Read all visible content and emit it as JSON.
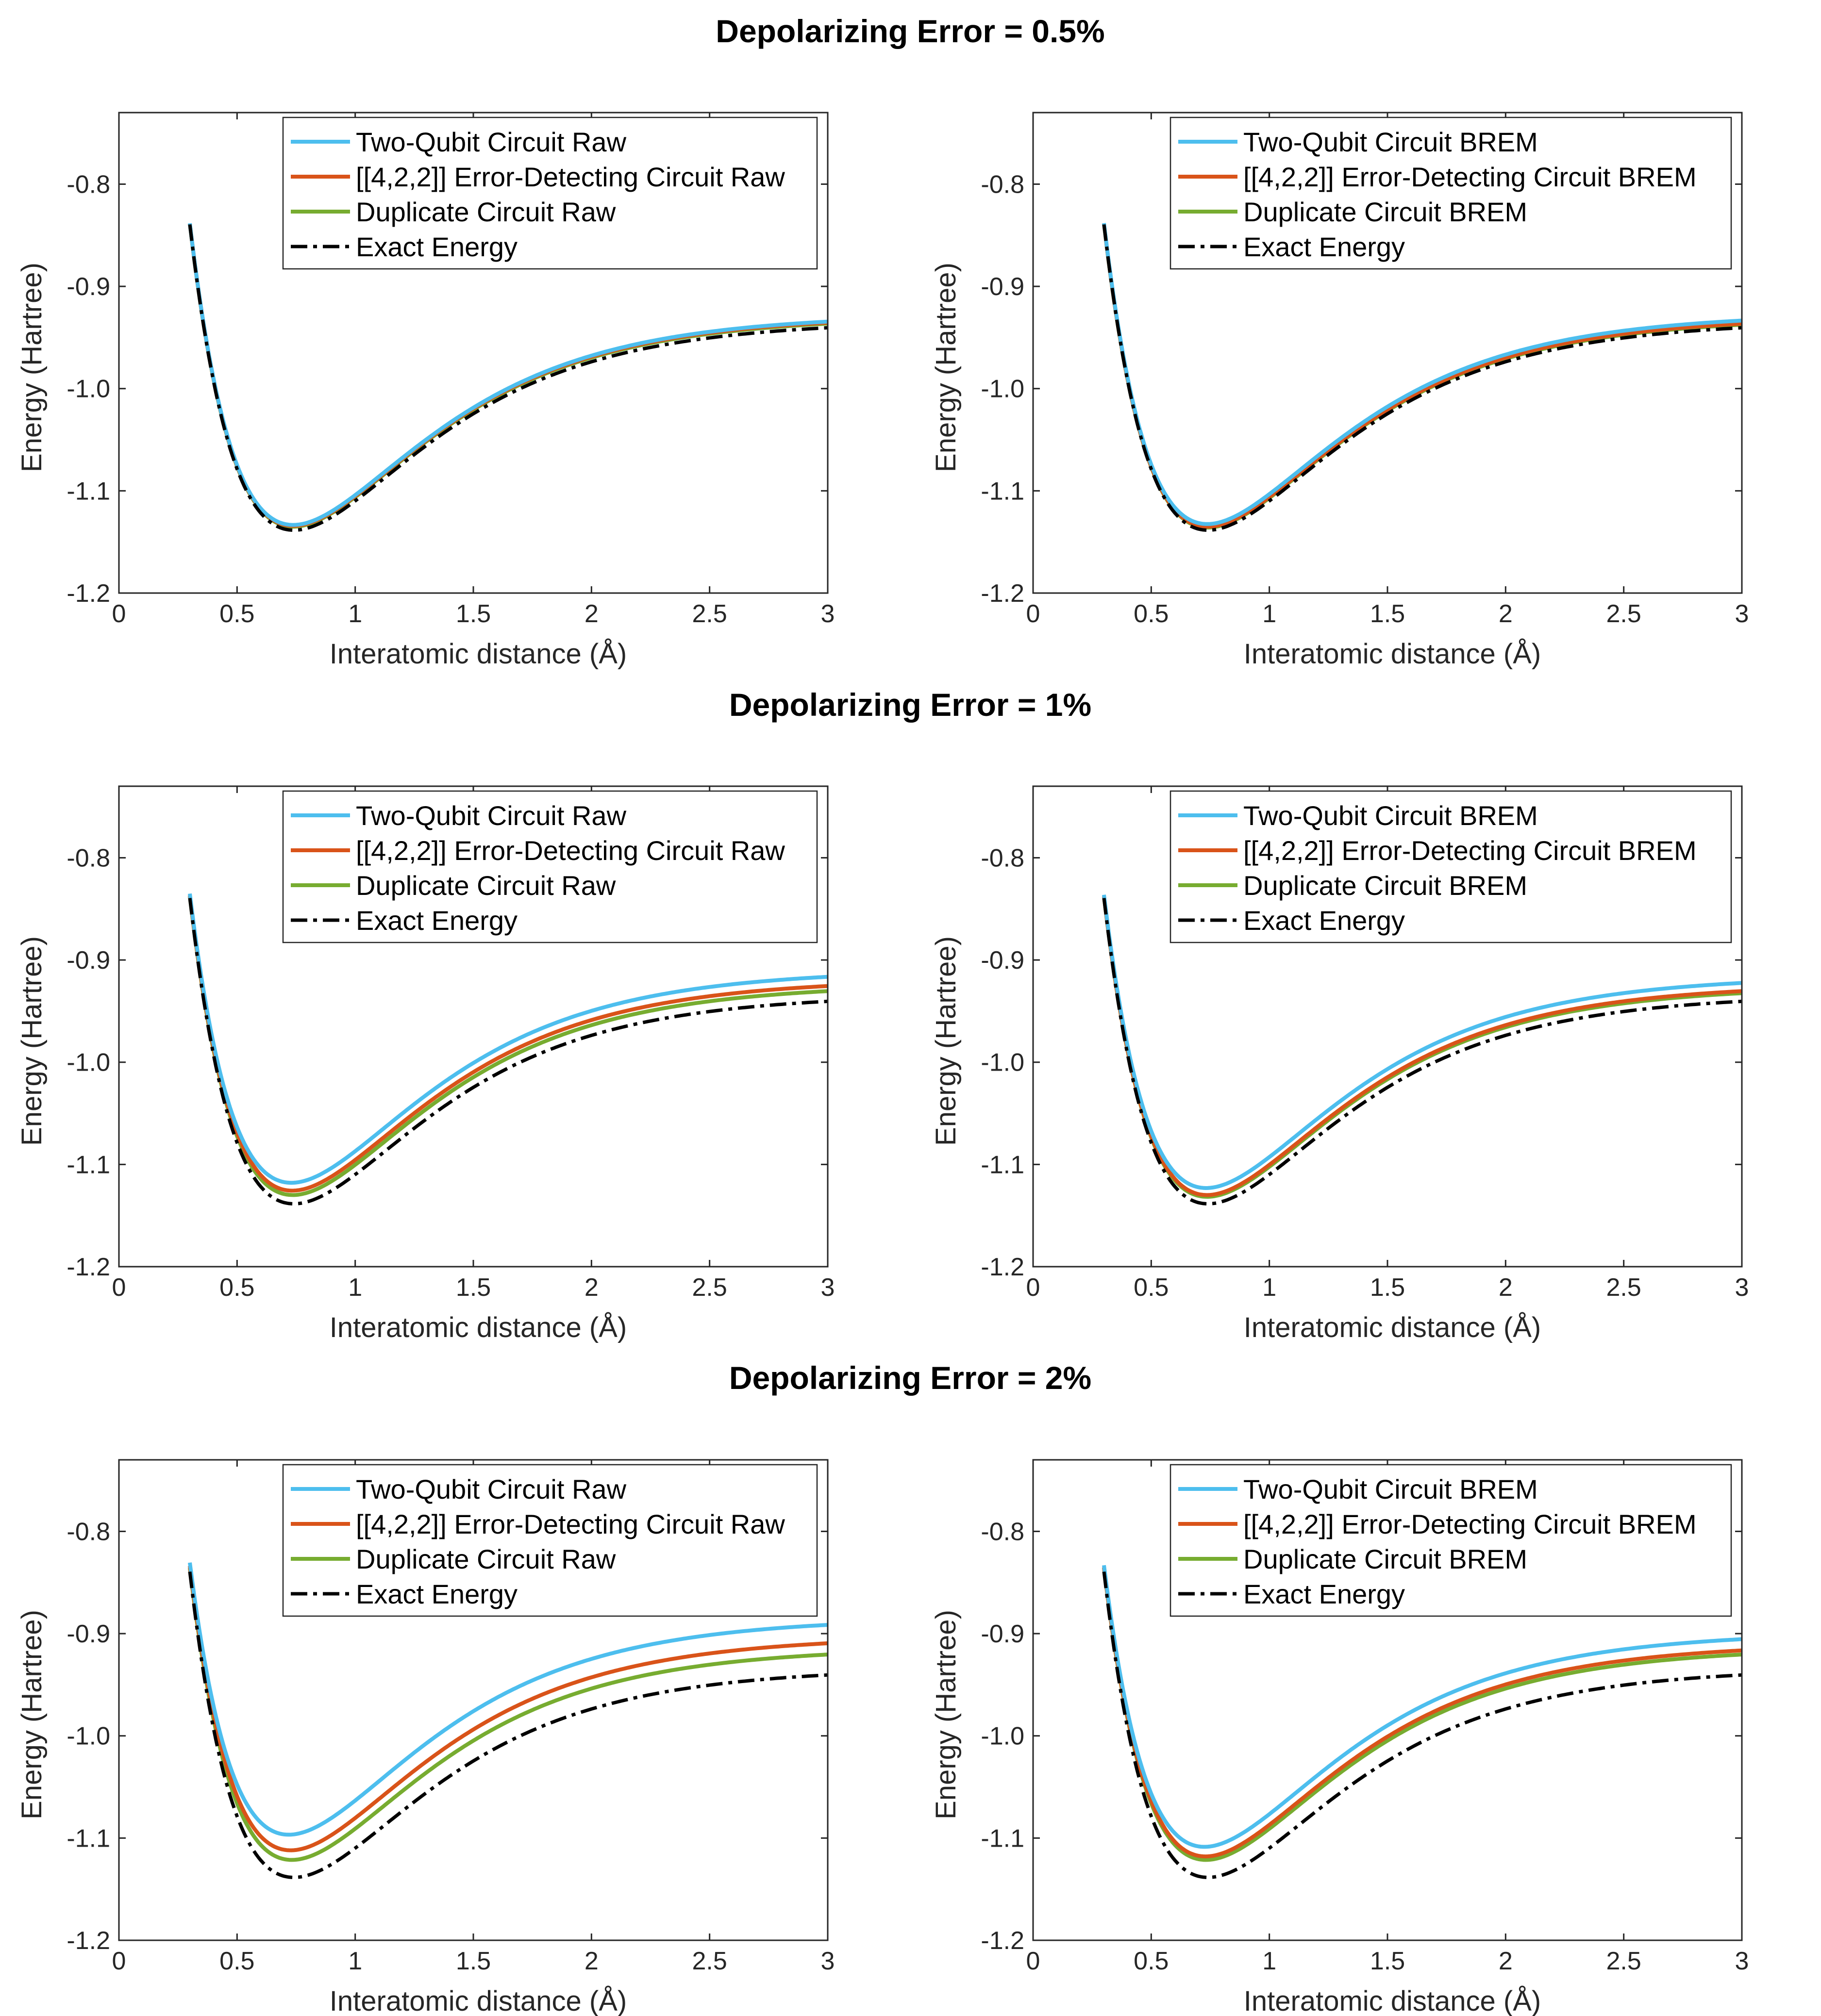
{
  "figure": {
    "section_titles": [
      "Depolarizing Error = 0.5%",
      "Depolarizing Error = 1%",
      "Depolarizing Error = 2%"
    ]
  },
  "colors": {
    "two_qubit": "#4DBEEE",
    "error_detecting": "#D95319",
    "duplicate": "#77AC30",
    "exact": "#000000"
  },
  "chart_data": [
    {
      "type": "line",
      "row": 0,
      "col": 0,
      "error_rate": "0.5%",
      "xlabel": "Interatomic distance (Å)",
      "ylabel": "Energy (Hartree)",
      "xlim": [
        0,
        3
      ],
      "ylim": [
        -1.2,
        -0.73
      ],
      "xticks": [
        0,
        0.5,
        1,
        1.5,
        2,
        2.5,
        3
      ],
      "xtick_labels": [
        "0",
        "0.5",
        "1",
        "1.5",
        "2",
        "2.5",
        "3"
      ],
      "yticks": [
        -1.2,
        -1.1,
        -1.0,
        -0.9,
        -0.8
      ],
      "ytick_labels": [
        "-1.2",
        "-1.1",
        "-1.0",
        "-0.9",
        "-0.8"
      ],
      "legend_location": "top-right",
      "series": [
        {
          "name": "Two-Qubit Circuit Raw",
          "key": "two_qubit",
          "offset": 0.006
        },
        {
          "name": "[[4,2,2]] Error-Detecting Circuit Raw",
          "key": "error_detecting",
          "offset": 0.005
        },
        {
          "name": "Duplicate Circuit Raw",
          "key": "duplicate",
          "offset": 0.004
        },
        {
          "name": "Exact Energy",
          "key": "exact",
          "offset": 0,
          "dash": "dashdot"
        }
      ]
    },
    {
      "type": "line",
      "row": 0,
      "col": 1,
      "error_rate": "0.5%",
      "xlabel": "Interatomic distance (Å)",
      "ylabel": "Energy (Hartree)",
      "xlim": [
        0,
        3
      ],
      "ylim": [
        -1.2,
        -0.73
      ],
      "xticks": [
        0,
        0.5,
        1,
        1.5,
        2,
        2.5,
        3
      ],
      "xtick_labels": [
        "0",
        "0.5",
        "1",
        "1.5",
        "2",
        "2.5",
        "3"
      ],
      "yticks": [
        -1.2,
        -1.1,
        -1.0,
        -0.9,
        -0.8
      ],
      "ytick_labels": [
        "-1.2",
        "-1.1",
        "-1.0",
        "-0.9",
        "-0.8"
      ],
      "legend_location": "top-right",
      "series": [
        {
          "name": "Two-Qubit Circuit BREM",
          "key": "two_qubit",
          "offset": 0.007
        },
        {
          "name": "[[4,2,2]] Error-Detecting Circuit BREM",
          "key": "error_detecting",
          "offset": 0.004
        },
        {
          "name": "Duplicate Circuit BREM",
          "key": "duplicate",
          "offset": 0.003
        },
        {
          "name": "Exact Energy",
          "key": "exact",
          "offset": 0,
          "dash": "dashdot"
        }
      ]
    },
    {
      "type": "line",
      "row": 1,
      "col": 0,
      "error_rate": "1%",
      "xlabel": "Interatomic distance (Å)",
      "ylabel": "Energy (Hartree)",
      "xlim": [
        0,
        3
      ],
      "ylim": [
        -1.2,
        -0.73
      ],
      "xticks": [
        0,
        0.5,
        1,
        1.5,
        2,
        2.5,
        3
      ],
      "xtick_labels": [
        "0",
        "0.5",
        "1",
        "1.5",
        "2",
        "2.5",
        "3"
      ],
      "yticks": [
        -1.2,
        -1.1,
        -1.0,
        -0.9,
        -0.8
      ],
      "ytick_labels": [
        "-1.2",
        "-1.1",
        "-1.0",
        "-0.9",
        "-0.8"
      ],
      "legend_location": "top-right",
      "series": [
        {
          "name": "Two-Qubit Circuit Raw",
          "key": "two_qubit",
          "offset": 0.024
        },
        {
          "name": "[[4,2,2]] Error-Detecting Circuit Raw",
          "key": "error_detecting",
          "offset": 0.015
        },
        {
          "name": "Duplicate Circuit Raw",
          "key": "duplicate",
          "offset": 0.01
        },
        {
          "name": "Exact Energy",
          "key": "exact",
          "offset": 0,
          "dash": "dashdot"
        }
      ]
    },
    {
      "type": "line",
      "row": 1,
      "col": 1,
      "error_rate": "1%",
      "xlabel": "Interatomic distance (Å)",
      "ylabel": "Energy (Hartree)",
      "xlim": [
        0,
        3
      ],
      "ylim": [
        -1.2,
        -0.73
      ],
      "xticks": [
        0,
        0.5,
        1,
        1.5,
        2,
        2.5,
        3
      ],
      "xtick_labels": [
        "0",
        "0.5",
        "1",
        "1.5",
        "2",
        "2.5",
        "3"
      ],
      "yticks": [
        -1.2,
        -1.1,
        -1.0,
        -0.9,
        -0.8
      ],
      "ytick_labels": [
        "-1.2",
        "-1.1",
        "-1.0",
        "-0.9",
        "-0.8"
      ],
      "legend_location": "top-right",
      "series": [
        {
          "name": "Two-Qubit Circuit BREM",
          "key": "two_qubit",
          "offset": 0.018
        },
        {
          "name": "[[4,2,2]] Error-Detecting Circuit BREM",
          "key": "error_detecting",
          "offset": 0.01
        },
        {
          "name": "Duplicate Circuit BREM",
          "key": "duplicate",
          "offset": 0.008
        },
        {
          "name": "Exact Energy",
          "key": "exact",
          "offset": 0,
          "dash": "dashdot"
        }
      ]
    },
    {
      "type": "line",
      "row": 2,
      "col": 0,
      "error_rate": "2%",
      "xlabel": "Interatomic distance (Å)",
      "ylabel": "Energy (Hartree)",
      "xlim": [
        0,
        3
      ],
      "ylim": [
        -1.2,
        -0.73
      ],
      "xticks": [
        0,
        0.5,
        1,
        1.5,
        2,
        2.5,
        3
      ],
      "xtick_labels": [
        "0",
        "0.5",
        "1",
        "1.5",
        "2",
        "2.5",
        "3"
      ],
      "yticks": [
        -1.2,
        -1.1,
        -1.0,
        -0.9,
        -0.8
      ],
      "ytick_labels": [
        "-1.2",
        "-1.1",
        "-1.0",
        "-0.9",
        "-0.8"
      ],
      "legend_location": "top-right",
      "series": [
        {
          "name": "Two-Qubit Circuit Raw",
          "key": "two_qubit",
          "offset": 0.049
        },
        {
          "name": "[[4,2,2]] Error-Detecting Circuit Raw",
          "key": "error_detecting",
          "offset": 0.031
        },
        {
          "name": "Duplicate Circuit Raw",
          "key": "duplicate",
          "offset": 0.02
        },
        {
          "name": "Exact Energy",
          "key": "exact",
          "offset": 0,
          "dash": "dashdot"
        }
      ]
    },
    {
      "type": "line",
      "row": 2,
      "col": 1,
      "error_rate": "2%",
      "xlabel": "Interatomic distance (Å)",
      "ylabel": "Energy (Hartree)",
      "xlim": [
        0,
        3
      ],
      "ylim": [
        -1.2,
        -0.73
      ],
      "xticks": [
        0,
        0.5,
        1,
        1.5,
        2,
        2.5,
        3
      ],
      "xtick_labels": [
        "0",
        "0.5",
        "1",
        "1.5",
        "2",
        "2.5",
        "3"
      ],
      "yticks": [
        -1.2,
        -1.1,
        -1.0,
        -0.9,
        -0.8
      ],
      "ytick_labels": [
        "-1.2",
        "-1.1",
        "-1.0",
        "-0.9",
        "-0.8"
      ],
      "legend_location": "top-right",
      "series": [
        {
          "name": "Two-Qubit Circuit BREM",
          "key": "two_qubit",
          "offset": 0.035
        },
        {
          "name": "[[4,2,2]] Error-Detecting Circuit BREM",
          "key": "error_detecting",
          "offset": 0.024
        },
        {
          "name": "Duplicate Circuit BREM",
          "key": "duplicate",
          "offset": 0.02
        },
        {
          "name": "Exact Energy",
          "key": "exact",
          "offset": 0,
          "dash": "dashdot"
        }
      ]
    }
  ]
}
